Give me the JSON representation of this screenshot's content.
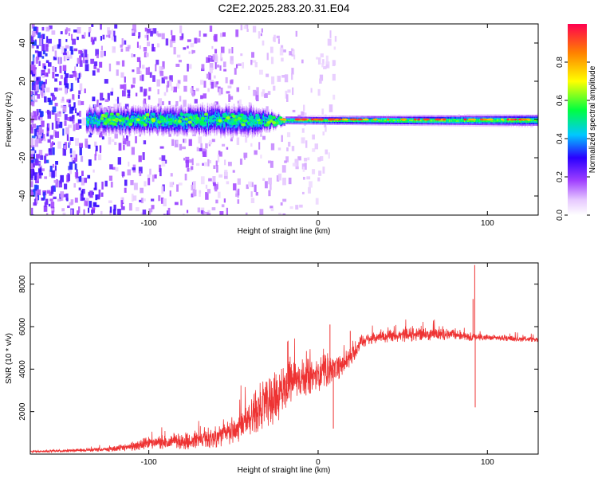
{
  "title": "C2E2.2025.283.20.31.E04",
  "colors": {
    "snr_line": "#ee3333",
    "axis": "#000000",
    "background": "#ffffff"
  },
  "chart_data": [
    {
      "type": "heatmap",
      "name": "spectrogram",
      "xlabel": "Height of straight line (km)",
      "ylabel": "Frequency (Hz)",
      "xlim": [
        -170,
        130
      ],
      "ylim": [
        -50,
        50
      ],
      "x_ticks": [
        -100,
        0,
        100
      ],
      "x_tick_labels": [
        "-100",
        "0",
        "100"
      ],
      "y_ticks": [
        -40,
        -20,
        0,
        20,
        40
      ],
      "y_tick_labels": [
        "-40",
        "-20",
        "0",
        "20",
        "40"
      ],
      "colorbar": {
        "label": "Normalized spectral amplitude",
        "range": [
          0,
          1
        ],
        "ticks": [
          0.0,
          0.2,
          0.4,
          0.6,
          0.8
        ],
        "tick_labels": [
          "0.0",
          "0.2",
          "0.4",
          "0.6",
          "0.8"
        ],
        "colormap": "rainbow"
      },
      "ridge": {
        "description": "narrow spectral line near 0 Hz",
        "x_start": -137,
        "x_end": 130,
        "center_freq": 0,
        "band_halfwidth_hz": [
          [
            -137,
            5
          ],
          [
            -40,
            6
          ],
          [
            -20,
            2
          ],
          [
            130,
            3
          ]
        ],
        "peak_amplitude": 0.95
      },
      "noise_region": {
        "x_start": -170,
        "x_end": -40,
        "freq_range": [
          -50,
          50
        ]
      }
    },
    {
      "type": "line",
      "name": "snr",
      "xlabel": "Height of straight line (km)",
      "ylabel": "SNR (10 * v/v)",
      "xlim": [
        -170,
        130
      ],
      "ylim": [
        0,
        9000
      ],
      "x_ticks": [
        -100,
        0,
        100
      ],
      "x_tick_labels": [
        "-100",
        "0",
        "100"
      ],
      "y_ticks": [
        2000,
        4000,
        6000,
        8000
      ],
      "y_tick_labels": [
        "2000",
        "4000",
        "6000",
        "8000"
      ],
      "envelope": {
        "x": [
          -170,
          -150,
          -120,
          -100,
          -80,
          -60,
          -45,
          -35,
          -25,
          -18,
          -10,
          0,
          10,
          20,
          25,
          35,
          50,
          70,
          85,
          92,
          95,
          110,
          130
        ],
        "mean": [
          120,
          150,
          250,
          500,
          600,
          800,
          1300,
          2200,
          2600,
          3300,
          3600,
          3700,
          4000,
          4600,
          5300,
          5500,
          5600,
          5650,
          5600,
          5500,
          5500,
          5450,
          5400
        ],
        "spread": [
          80,
          100,
          200,
          500,
          600,
          800,
          1200,
          1700,
          2000,
          1700,
          1400,
          1200,
          1000,
          700,
          500,
          450,
          500,
          450,
          350,
          300,
          300,
          200,
          200
        ]
      },
      "spikes": [
        {
          "x": -18,
          "value": 5300
        },
        {
          "x": 7,
          "value": 6100
        },
        {
          "x": 19,
          "value": 5800
        },
        {
          "x": 9,
          "value": 1200
        },
        {
          "x": 92.5,
          "value": 8900
        },
        {
          "x": 92.8,
          "value": 2200
        },
        {
          "x": 91.5,
          "value": 7300
        }
      ]
    }
  ]
}
